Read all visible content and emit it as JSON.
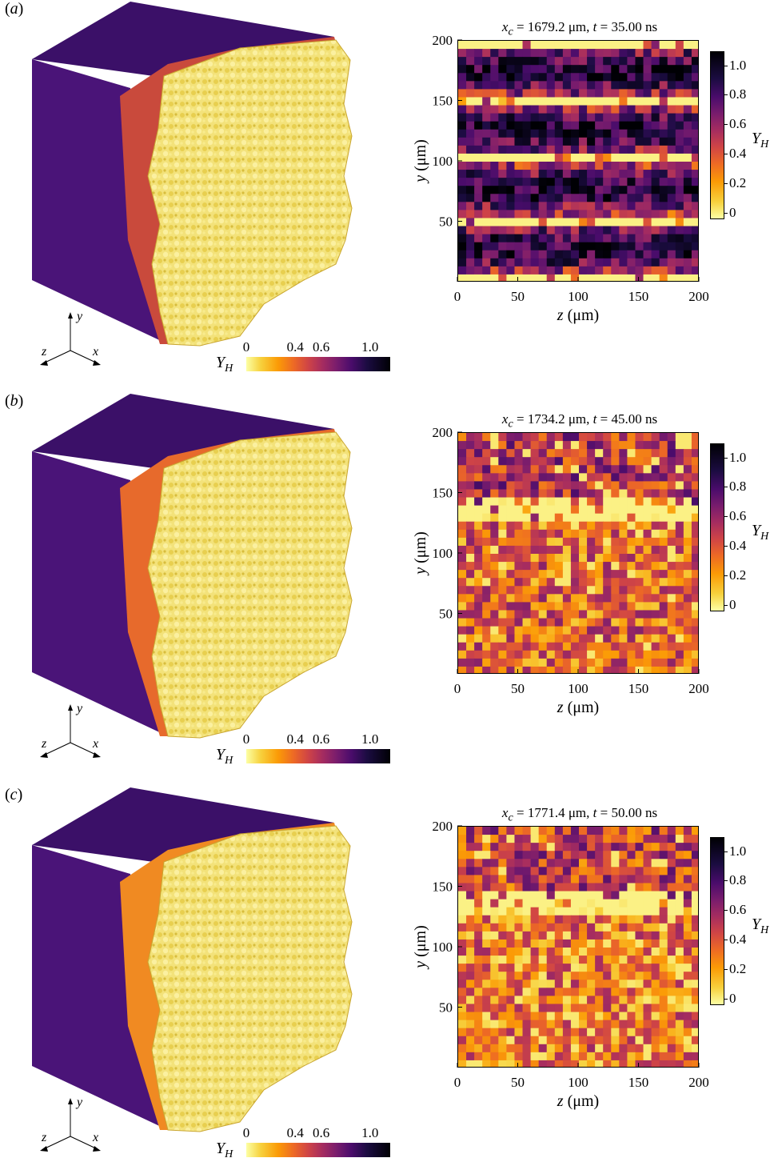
{
  "colorbar": {
    "label_main": "Y",
    "label_sub": "H",
    "vertical_ticks": [
      "1.0",
      "0.8",
      "0.6",
      "0.4",
      "0.2",
      "0"
    ],
    "horizontal_ticks": [
      "0",
      "0.4",
      "0.6",
      "1.0"
    ]
  },
  "axes": {
    "x_label_var": "z",
    "x_label_unit": "(μm)",
    "y_label_var": "y",
    "y_label_unit": "(μm)",
    "x_ticks": [
      "0",
      "50",
      "100",
      "150",
      "200"
    ],
    "y_ticks": [
      "200",
      "150",
      "100",
      "50"
    ]
  },
  "triad": {
    "x": "x",
    "y": "y",
    "z": "z"
  },
  "panels": [
    {
      "label_open": "(",
      "label_letter": "a",
      "label_close": ")",
      "title_xc_sym": "x",
      "title_xc_sub": "c",
      "title_xc_val": " = 1679.2 μm, ",
      "title_t_sym": "t",
      "title_t_val": " = 35.00 ns"
    },
    {
      "label_open": "(",
      "label_letter": "b",
      "label_close": ")",
      "title_xc_sym": "x",
      "title_xc_sub": "c",
      "title_xc_val": " = 1734.2 μm, ",
      "title_t_sym": "t",
      "title_t_val": " = 45.00 ns"
    },
    {
      "label_open": "(",
      "label_letter": "c",
      "label_close": ")",
      "title_xc_sym": "x",
      "title_xc_sub": "c",
      "title_xc_val": " = 1771.4 μm, ",
      "title_t_sym": "t",
      "title_t_val": " = 50.00 ns"
    }
  ],
  "chart_data": [
    {
      "type": "heatmap",
      "title": "x_c = 1679.2 μm, t = 35.00 ns",
      "xlabel": "z (μm)",
      "ylabel": "y (μm)",
      "xlim": [
        0,
        200
      ],
      "ylim": [
        0,
        200
      ],
      "colorbar_label": "Y_H",
      "colorbar_range": [
        0,
        1.15
      ],
      "colormap": "inferno_r"
    },
    {
      "type": "heatmap",
      "title": "x_c = 1734.2 μm, t = 45.00 ns",
      "xlabel": "z (μm)",
      "ylabel": "y (μm)",
      "xlim": [
        0,
        200
      ],
      "ylim": [
        0,
        200
      ],
      "colorbar_label": "Y_H",
      "colorbar_range": [
        0,
        1.15
      ],
      "colormap": "inferno_r"
    },
    {
      "type": "heatmap",
      "title": "x_c = 1771.4 μm, t = 50.00 ns",
      "xlabel": "z (μm)",
      "ylabel": "y (μm)",
      "xlim": [
        0,
        200
      ],
      "ylim": [
        0,
        200
      ],
      "colorbar_label": "Y_H",
      "colorbar_range": [
        0,
        1.15
      ],
      "colormap": "inferno_r"
    }
  ]
}
